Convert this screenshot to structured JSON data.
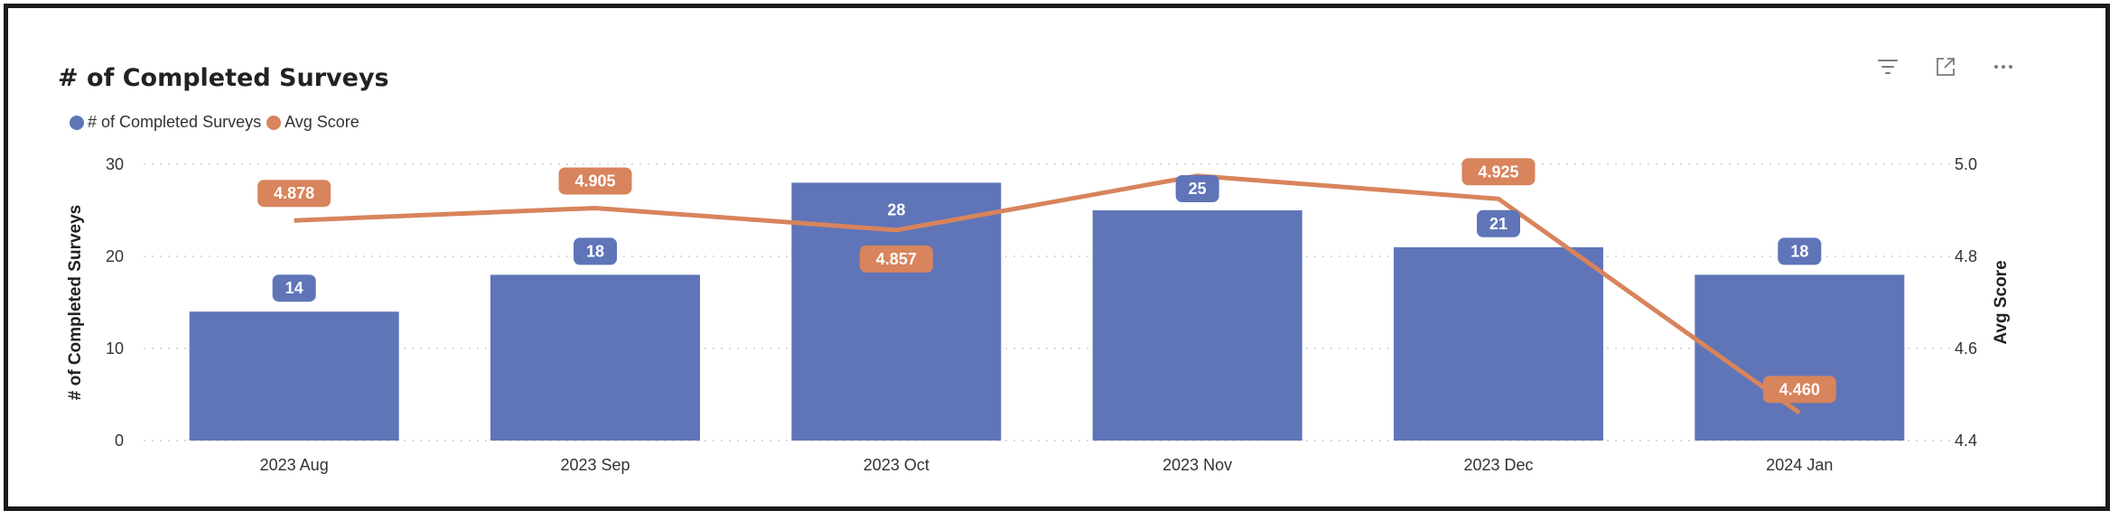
{
  "visual": {
    "title": "# of Completed Surveys",
    "icons": [
      "filter-icon",
      "focus-mode-icon",
      "more-options-icon"
    ]
  },
  "colors": {
    "bar": "#5f75b8",
    "line": "#d8845c",
    "grid": "#cccccc",
    "text": "#333333"
  },
  "legend": [
    {
      "label": "# of Completed Surveys",
      "color": "#5f75b8"
    },
    {
      "label": "Avg Score",
      "color": "#d8845c"
    }
  ],
  "chart_data": {
    "type": "bar",
    "categories": [
      "2023 Aug",
      "2023 Sep",
      "2023 Oct",
      "2023 Nov",
      "2023 Dec",
      "2024 Jan"
    ],
    "series": [
      {
        "name": "# of Completed Surveys",
        "type": "bar",
        "axis": "left",
        "values": [
          14,
          18,
          28,
          25,
          21,
          18
        ],
        "labels": [
          "14",
          "18",
          "28",
          "25",
          "21",
          "18"
        ]
      },
      {
        "name": "Avg Score",
        "type": "line",
        "axis": "right",
        "values": [
          4.878,
          4.905,
          4.857,
          4.975,
          4.925,
          4.46
        ],
        "labels": [
          "4.878",
          "4.905",
          "4.857",
          "",
          "4.925",
          "4.460"
        ]
      }
    ],
    "ylabel": "# of Completed Surveys",
    "y2label": "Avg Score",
    "ylim": [
      0,
      30
    ],
    "y2lim": [
      4.4,
      5.0
    ],
    "yticks": [
      "0",
      "10",
      "20",
      "30"
    ],
    "y2ticks": [
      "4.4",
      "4.6",
      "4.8",
      "5.0"
    ],
    "grid": true,
    "legend_position": "top-left"
  }
}
